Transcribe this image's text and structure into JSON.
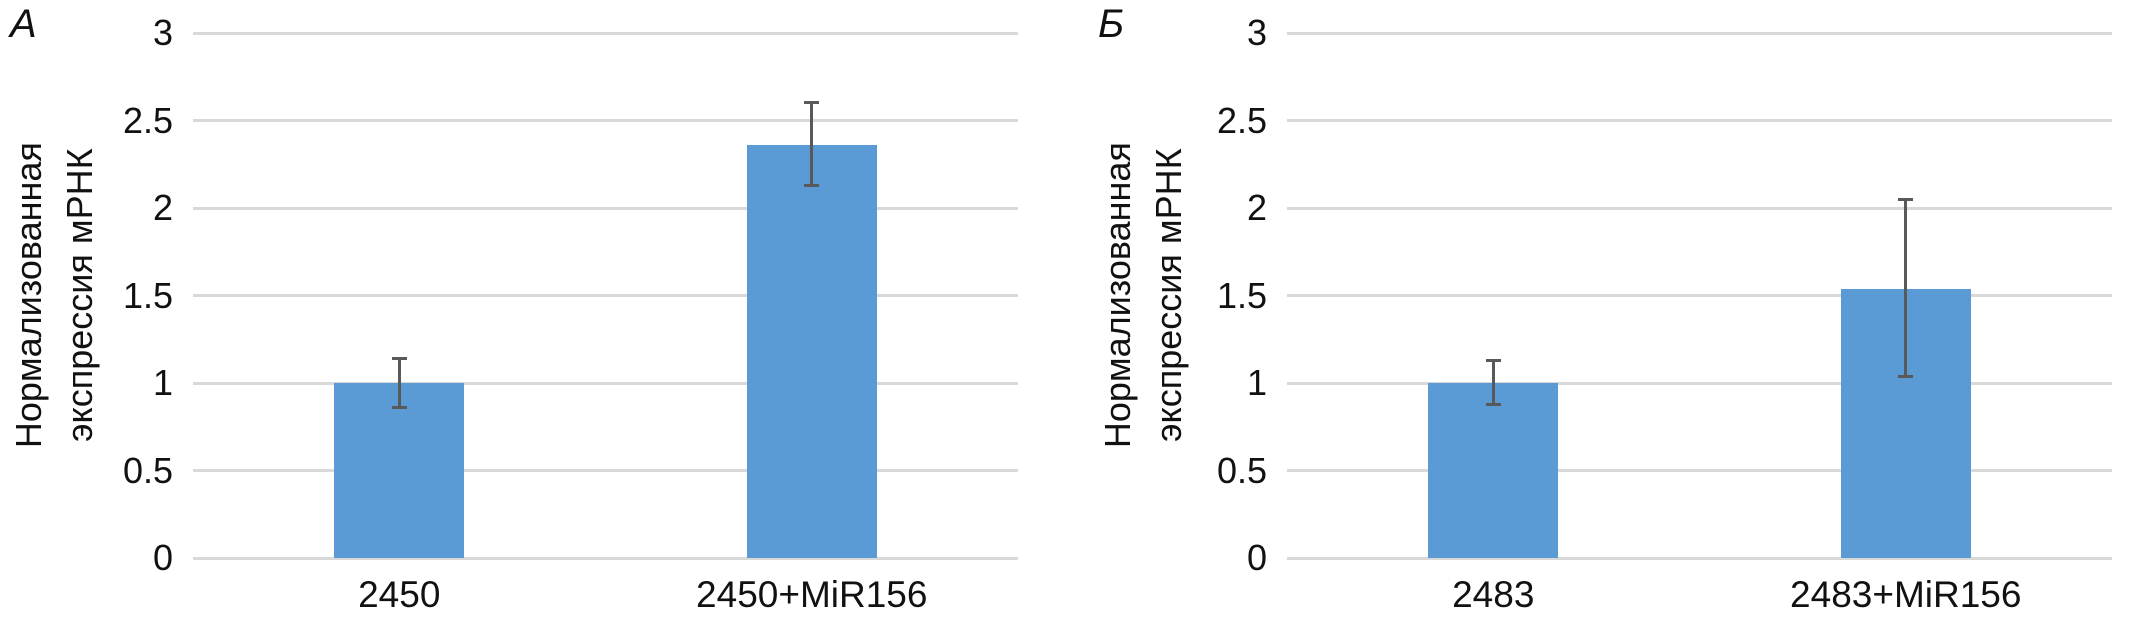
{
  "figure_type": "two-panel bar chart with error bars",
  "colors": {
    "bar": "#5B9BD5",
    "error_bar": "#595959",
    "gridline": "#D9D9D9",
    "text": "#111111",
    "background": "#FFFFFF"
  },
  "chart_data": [
    {
      "type": "bar",
      "panel_label": "А",
      "title": "",
      "xlabel": "",
      "ylabel": "Нормализованная экспрессия мРНК",
      "ylabel_lines": [
        "Нормализованная",
        "экспрессия мРНК"
      ],
      "categories": [
        "2450",
        "2450+MiR156"
      ],
      "values": [
        1.0,
        2.36
      ],
      "error_low": [
        0.15,
        0.24
      ],
      "error_high": [
        0.15,
        0.25
      ],
      "ylim": [
        0,
        3
      ],
      "yticks": [
        0,
        0.5,
        1,
        1.5,
        2,
        2.5,
        3
      ],
      "ytick_labels": [
        "0",
        "0.5",
        "1",
        "1.5",
        "2",
        "2.5",
        "3"
      ],
      "grid": true,
      "legend": false,
      "bar_color": "#5B9BD5",
      "error_color": "#595959",
      "gridline_color": "#D9D9D9"
    },
    {
      "type": "bar",
      "panel_label": "Б",
      "title": "",
      "xlabel": "",
      "ylabel": "Нормализованная экспрессия мРНК",
      "ylabel_lines": [
        "Нормализованная",
        "экспрессия мРНК"
      ],
      "categories": [
        "2483",
        "2483+MiR156"
      ],
      "values": [
        1.0,
        1.54
      ],
      "error_low": [
        0.13,
        0.51
      ],
      "error_high": [
        0.14,
        0.52
      ],
      "ylim": [
        0,
        3
      ],
      "yticks": [
        0,
        0.5,
        1,
        1.5,
        2,
        2.5,
        3
      ],
      "ytick_labels": [
        "0",
        "0.5",
        "1",
        "1.5",
        "2",
        "2.5",
        "3"
      ],
      "grid": true,
      "legend": false,
      "bar_color": "#5B9BD5",
      "error_color": "#595959",
      "gridline_color": "#D9D9D9"
    }
  ]
}
